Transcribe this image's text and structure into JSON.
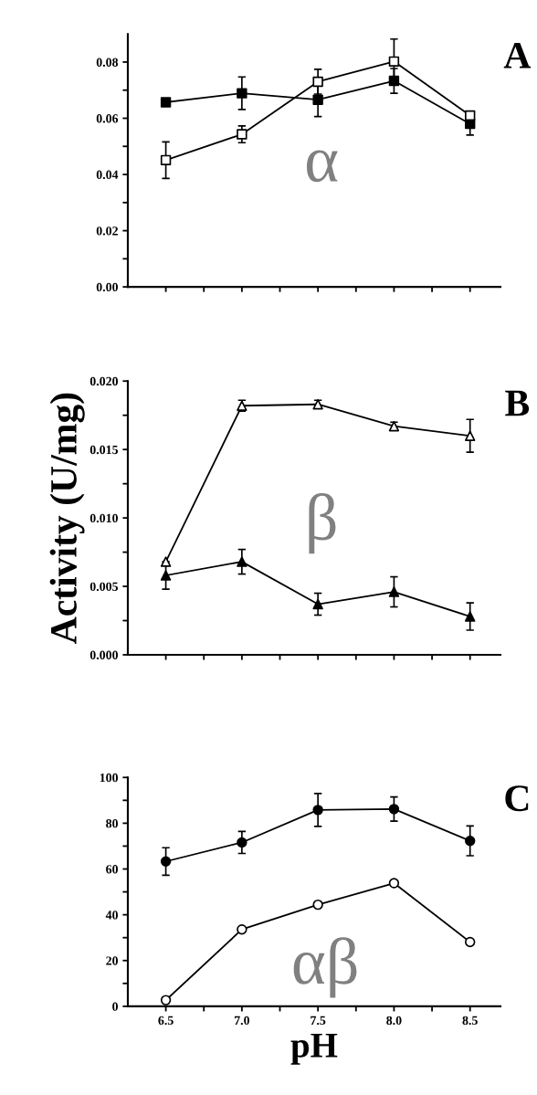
{
  "chart_data": [
    {
      "type": "line",
      "xlim": [
        6.25,
        8.7
      ],
      "xticks": [
        {
          "value": 6.5,
          "label": null
        },
        {
          "value": 6.75,
          "label": null
        },
        {
          "value": 7.0,
          "label": null
        },
        {
          "value": 7.25,
          "label": null
        },
        {
          "value": 7.5,
          "label": null
        },
        {
          "value": 7.75,
          "label": null
        },
        {
          "value": 8.0,
          "label": null
        },
        {
          "value": 8.25,
          "label": null
        },
        {
          "value": 8.5,
          "label": null
        }
      ],
      "ylim": [
        0,
        0.09
      ],
      "yticks": [
        {
          "value": 0,
          "label": "0.00"
        },
        {
          "value": 0.01,
          "label": null
        },
        0.02,
        {
          "value": 0.03,
          "label": null
        },
        0.04,
        {
          "value": 0.05,
          "label": null
        },
        0.06,
        {
          "value": 0.07,
          "label": null
        },
        0.08
      ],
      "tick_labels": "y",
      "grid": false,
      "line_style": "solid",
      "x": [
        6.5,
        7.0,
        7.5,
        8.0,
        8.5
      ],
      "annotations": [
        "A",
        "α"
      ],
      "series": [
        {
          "color": "#000000",
          "marker": "square",
          "colors": [
            "#000000",
            "#000000",
            "#000000",
            "#000000",
            "#000000"
          ],
          "values": [
            0.0657,
            0.0689,
            0.0666,
            0.0733,
            0.058
          ],
          "errors": [
            null,
            0.0058,
            0.006,
            0.0044,
            0.004
          ]
        },
        {
          "color": "#000000",
          "marker": "square",
          "colors": [
            "#ffffff",
            "#ffffff",
            "#ffffff",
            "#ffffff",
            "#ffffff"
          ],
          "values": [
            0.0451,
            0.0543,
            0.073,
            0.0802,
            0.061
          ],
          "errors": [
            0.0065,
            0.003,
            0.0044,
            0.008,
            0.001
          ]
        }
      ]
    },
    {
      "type": "line",
      "xlim": [
        6.25,
        8.7
      ],
      "xticks": [
        {
          "value": 6.5,
          "label": null
        },
        {
          "value": 6.75,
          "label": null
        },
        {
          "value": 7.0,
          "label": null
        },
        {
          "value": 7.25,
          "label": null
        },
        {
          "value": 7.5,
          "label": null
        },
        {
          "value": 7.75,
          "label": null
        },
        {
          "value": 8.0,
          "label": null
        },
        {
          "value": 8.25,
          "label": null
        },
        {
          "value": 8.5,
          "label": null
        }
      ],
      "ylim": [
        0,
        0.02
      ],
      "yticks": [
        {
          "value": 0,
          "label": "0.000"
        },
        {
          "value": 0.0025,
          "label": null
        },
        {
          "value": 0.005,
          "label": "0.005"
        },
        {
          "value": 0.0075,
          "label": null
        },
        {
          "value": 0.01,
          "label": "0.010"
        },
        {
          "value": 0.0125,
          "label": null
        },
        {
          "value": 0.015,
          "label": "0.015"
        },
        {
          "value": 0.0175,
          "label": null
        },
        {
          "value": 0.02,
          "label": "0.020"
        }
      ],
      "tick_labels": "y",
      "grid": false,
      "line_style": "solid",
      "ylabel": "Activity (U/mg)",
      "x": [
        6.5,
        7.0,
        7.5,
        8.0,
        8.5
      ],
      "annotations": [
        "B",
        "β"
      ],
      "series": [
        {
          "color": "#000000",
          "marker": "triangle",
          "colors": [
            "#ffffff",
            "#ffffff",
            "#ffffff",
            "#ffffff",
            "#ffffff"
          ],
          "values": [
            0.0068,
            0.0182,
            0.0183,
            0.0167,
            0.016
          ],
          "errors": [
            null,
            0.0004,
            0.0003,
            0.0003,
            0.0012
          ]
        },
        {
          "color": "#000000",
          "marker": "triangle",
          "colors": [
            "#000000",
            "#000000",
            "#000000",
            "#000000",
            "#000000"
          ],
          "values": [
            0.0058,
            0.0068,
            0.0037,
            0.0046,
            0.0028
          ],
          "errors": [
            0.001,
            0.0009,
            0.0008,
            0.0011,
            0.001
          ]
        }
      ]
    },
    {
      "type": "line",
      "xlim": [
        6.25,
        8.7
      ],
      "xticks": [
        {
          "value": 6.5,
          "label": "6.5"
        },
        {
          "value": 6.75,
          "label": null
        },
        {
          "value": 7.0,
          "label": "7.0"
        },
        {
          "value": 7.25,
          "label": null
        },
        {
          "value": 7.5,
          "label": "7.5"
        },
        {
          "value": 7.75,
          "label": null
        },
        {
          "value": 8.0,
          "label": "8.0"
        },
        {
          "value": 8.25,
          "label": null
        },
        {
          "value": 8.5,
          "label": "8.5"
        }
      ],
      "ylim": [
        0,
        100
      ],
      "yticks": [
        0,
        {
          "value": 10,
          "label": null
        },
        20,
        {
          "value": 30,
          "label": null
        },
        40,
        {
          "value": 50,
          "label": null
        },
        60,
        {
          "value": 70,
          "label": null
        },
        80,
        {
          "value": 90,
          "label": null
        },
        100
      ],
      "grid": false,
      "line_style": "solid",
      "xlabel": "pH",
      "x": [
        6.5,
        7.0,
        7.5,
        8.0,
        8.5
      ],
      "annotations": [
        "C",
        "αβ"
      ],
      "series": [
        {
          "color": "#000000",
          "marker": "circle",
          "colors": [
            "#000000",
            "#000000",
            "#000000",
            "#000000",
            "#000000"
          ],
          "values": [
            63.3,
            71.6,
            85.8,
            86.2,
            72.3
          ],
          "errors": [
            6,
            4.8,
            7.2,
            5.3,
            6.5
          ]
        },
        {
          "color": "#000000",
          "marker": "circle",
          "colors": [
            "#ffffff",
            "#ffffff",
            "#ffffff",
            "#ffffff",
            "#ffffff"
          ],
          "values": [
            2.7,
            33.6,
            44.4,
            53.8,
            28.1
          ]
        }
      ]
    }
  ]
}
